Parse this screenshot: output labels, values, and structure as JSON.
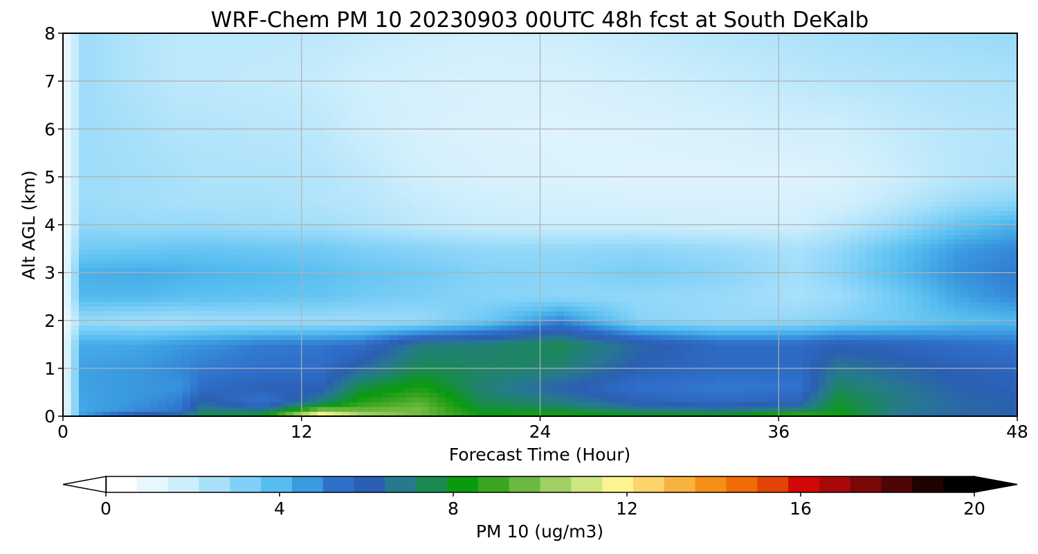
{
  "chart_data": {
    "type": "heatmap",
    "title": "WRF-Chem PM 10  20230903 00UTC 48h fcst at South DeKalb",
    "xlabel": "Forecast Time (Hour)",
    "ylabel": "Alt AGL (km)",
    "xlim": [
      0,
      48
    ],
    "ylim": [
      0,
      8
    ],
    "x_ticks": [
      "0",
      "12",
      "24",
      "36",
      "48"
    ],
    "y_ticks": [
      "0",
      "1",
      "2",
      "3",
      "4",
      "5",
      "6",
      "7",
      "8"
    ],
    "grid": true,
    "colorbar": {
      "label": "PM 10  (ug/m3)",
      "range": [
        0,
        20
      ],
      "ticks": [
        "0",
        "4",
        "8",
        "12",
        "16",
        "20"
      ],
      "extend": "both",
      "colors": [
        "#ffffff",
        "#e8f6fd",
        "#cdeefc",
        "#a8e0fa",
        "#7fd0f7",
        "#56bdf0",
        "#3a9be0",
        "#2f70cc",
        "#2b5fb3",
        "#277a8e",
        "#1a8a52",
        "#0a9a10",
        "#3aa521",
        "#6db840",
        "#a0cf62",
        "#cde67f",
        "#fdf390",
        "#fbd46b",
        "#f8b240",
        "#f58f16",
        "#ef6c06",
        "#e34406",
        "#d10806",
        "#a80808",
        "#7c0707",
        "#4d0505",
        "#1f0202",
        "#000000"
      ]
    },
    "profile_levels_km": [
      0,
      0.1,
      0.3,
      0.6,
      1.0,
      1.5,
      2.0,
      2.5,
      3.0,
      3.5,
      4.0,
      4.5,
      5.0,
      6.0,
      7.0,
      8.0
    ],
    "keyframes": [
      {
        "hour": 0,
        "values": [
          0.5,
          0.5,
          0.4,
          0.4,
          0.4,
          0.4,
          0.3,
          0.3,
          0.3,
          0.3,
          0.3,
          0.3,
          0.3,
          0.3,
          0.3,
          0.3
        ]
      },
      {
        "hour": 1,
        "values": [
          4.5,
          4.2,
          4.2,
          4.3,
          4.3,
          4.1,
          2.5,
          3.8,
          4.0,
          3.2,
          2.6,
          2.4,
          2.4,
          2.4,
          2.4,
          2.4
        ]
      },
      {
        "hour": 4,
        "values": [
          7.0,
          4.8,
          4.6,
          4.5,
          4.5,
          4.2,
          2.3,
          3.8,
          4.1,
          3.3,
          2.5,
          2.3,
          2.3,
          2.2,
          2.0,
          2.0
        ]
      },
      {
        "hour": 6,
        "values": [
          7.2,
          5.2,
          5.0,
          4.6,
          4.8,
          4.5,
          2.3,
          3.6,
          4.0,
          3.4,
          2.5,
          2.2,
          2.2,
          2.0,
          1.8,
          1.8
        ]
      },
      {
        "hour": 7,
        "values": [
          7.5,
          7.0,
          6.2,
          5.3,
          5.0,
          4.6,
          2.4,
          3.6,
          3.9,
          3.4,
          2.5,
          2.2,
          2.1,
          2.0,
          1.8,
          1.8
        ]
      },
      {
        "hour": 10,
        "values": [
          8.3,
          6.8,
          5.0,
          5.8,
          5.2,
          5.0,
          2.4,
          3.5,
          3.8,
          3.3,
          2.4,
          2.2,
          2.1,
          1.9,
          1.7,
          1.8
        ]
      },
      {
        "hour": 13,
        "values": [
          13.0,
          10.5,
          6.8,
          5.8,
          5.3,
          5.1,
          2.4,
          3.4,
          3.6,
          3.2,
          2.3,
          2.0,
          2.0,
          1.8,
          1.6,
          1.8
        ]
      },
      {
        "hour": 15,
        "values": [
          11.0,
          9.8,
          8.5,
          7.6,
          6.2,
          5.3,
          2.4,
          3.2,
          3.4,
          3.0,
          2.1,
          1.9,
          1.8,
          1.5,
          1.4,
          1.7
        ]
      },
      {
        "hour": 18,
        "values": [
          9.5,
          9.8,
          9.4,
          8.4,
          7.4,
          6.8,
          2.5,
          3.0,
          3.2,
          2.8,
          1.8,
          1.6,
          1.4,
          1.2,
          1.3,
          1.5
        ]
      },
      {
        "hour": 21,
        "values": [
          8.3,
          8.0,
          7.4,
          7.0,
          7.2,
          7.0,
          3.2,
          2.8,
          2.9,
          2.6,
          1.6,
          1.4,
          1.2,
          1.1,
          1.2,
          1.4
        ]
      },
      {
        "hour": 25,
        "values": [
          8.8,
          7.8,
          6.8,
          6.0,
          7.0,
          7.4,
          4.8,
          2.7,
          2.8,
          2.6,
          1.5,
          1.3,
          1.1,
          1.0,
          1.2,
          1.5
        ]
      },
      {
        "hour": 29,
        "values": [
          8.5,
          7.0,
          5.8,
          5.2,
          5.8,
          6.2,
          2.8,
          2.6,
          3.1,
          2.7,
          1.5,
          1.2,
          1.0,
          1.1,
          1.4,
          1.7
        ]
      },
      {
        "hour": 33,
        "values": [
          8.5,
          6.8,
          5.4,
          5.0,
          5.4,
          5.4,
          2.5,
          2.5,
          2.8,
          2.5,
          1.4,
          1.2,
          1.0,
          1.2,
          1.6,
          1.9
        ]
      },
      {
        "hour": 37,
        "values": [
          10.0,
          7.2,
          5.8,
          5.1,
          5.4,
          5.4,
          2.6,
          2.2,
          2.3,
          2.2,
          1.4,
          1.2,
          1.0,
          1.4,
          1.8,
          2.1
        ]
      },
      {
        "hour": 39,
        "values": [
          8.5,
          8.0,
          7.8,
          7.2,
          6.6,
          5.8,
          2.9,
          2.4,
          2.8,
          2.6,
          1.8,
          1.3,
          1.1,
          1.4,
          1.9,
          2.2
        ]
      },
      {
        "hour": 42,
        "values": [
          6.5,
          6.6,
          6.8,
          6.6,
          6.2,
          5.6,
          3.2,
          3.2,
          3.7,
          3.5,
          2.5,
          1.8,
          1.5,
          1.7,
          2.0,
          2.3
        ]
      },
      {
        "hour": 45,
        "values": [
          6.2,
          6.2,
          6.2,
          6.0,
          5.8,
          5.3,
          3.6,
          4.2,
          4.6,
          4.4,
          3.4,
          2.4,
          1.9,
          1.9,
          2.1,
          2.4
        ]
      },
      {
        "hour": 48,
        "values": [
          6.0,
          6.0,
          6.0,
          5.8,
          5.6,
          5.1,
          3.8,
          4.8,
          5.0,
          4.8,
          4.0,
          2.7,
          2.1,
          2.0,
          2.2,
          2.5
        ]
      }
    ]
  }
}
